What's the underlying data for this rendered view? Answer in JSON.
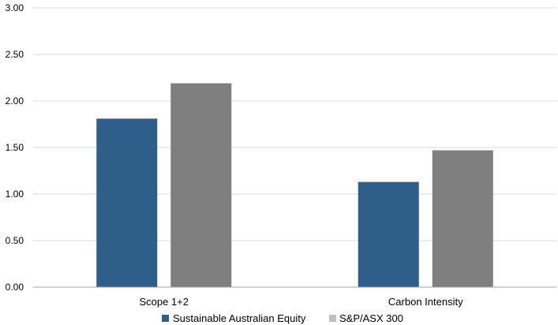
{
  "chart_data": {
    "type": "bar",
    "categories": [
      "Scope 1+2",
      "Carbon Intensity"
    ],
    "series": [
      {
        "name": "Sustainable Australian Equity",
        "values": [
          1.81,
          1.13
        ],
        "color": "#2e5f8a"
      },
      {
        "name": "S&P/ASX 300",
        "values": [
          2.19,
          1.47
        ],
        "color": "#7f7f7f"
      }
    ],
    "yticks": [
      "0.00",
      "0.50",
      "1.00",
      "1.50",
      "2.00",
      "2.50",
      "3.00"
    ],
    "ylim": [
      0,
      3
    ],
    "grid": true,
    "legend_position": "bottom"
  }
}
